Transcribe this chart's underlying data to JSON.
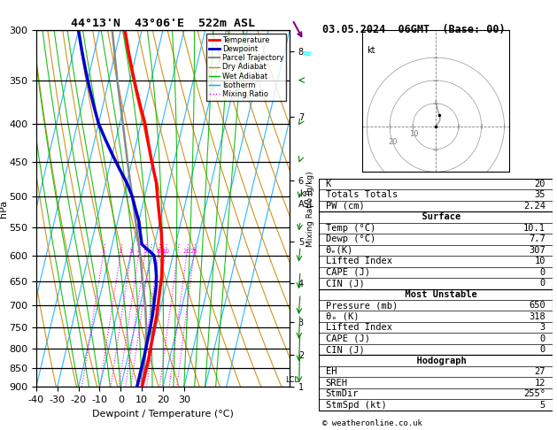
{
  "title_left": "44°13'N  43°06'E  522m ASL",
  "title_right": "03.05.2024  06GMT  (Base: 00)",
  "xlabel": "Dewpoint / Temperature (°C)",
  "ylabel_left": "hPa",
  "copyright": "© weatheronline.co.uk",
  "pmin": 300,
  "pmax": 900,
  "tmin": -40,
  "tmax": 35,
  "pressure_levels": [
    300,
    350,
    400,
    450,
    500,
    550,
    600,
    650,
    700,
    750,
    800,
    850,
    900
  ],
  "km_ticks": [
    1,
    2,
    3,
    4,
    5,
    6,
    7,
    8
  ],
  "km_pressures": [
    906,
    820,
    740,
    657,
    578,
    478,
    392,
    320
  ],
  "temp_data": {
    "pressure": [
      300,
      320,
      340,
      360,
      380,
      400,
      420,
      440,
      460,
      480,
      500,
      520,
      540,
      560,
      580,
      600,
      620,
      640,
      660,
      680,
      700,
      720,
      740,
      760,
      780,
      800,
      820,
      840,
      860,
      880,
      900
    ],
    "temperature": [
      -38,
      -34,
      -30,
      -26,
      -22,
      -18,
      -15,
      -12,
      -9,
      -6,
      -4,
      -2,
      0,
      2,
      3.5,
      5,
      6,
      7,
      7.5,
      8,
      8.5,
      9,
      9.2,
      9.4,
      9.6,
      9.8,
      10,
      10.1,
      10.1,
      10.1,
      10.1
    ]
  },
  "dewp_data": {
    "pressure": [
      300,
      320,
      340,
      360,
      380,
      400,
      420,
      440,
      460,
      480,
      500,
      520,
      540,
      560,
      580,
      600,
      620,
      640,
      660,
      680,
      700,
      720,
      740,
      760,
      780,
      800,
      820,
      840,
      860,
      880,
      900
    ],
    "dewpoint": [
      -60,
      -56,
      -52,
      -48,
      -44,
      -40,
      -35,
      -30,
      -25,
      -20,
      -16,
      -13,
      -10,
      -8,
      -6,
      1,
      3,
      4.5,
      5.5,
      6,
      6.5,
      7,
      7.2,
      7.4,
      7.5,
      7.6,
      7.7,
      7.7,
      7.7,
      7.7,
      7.7
    ]
  },
  "parcel_data": {
    "pressure": [
      900,
      850,
      800,
      750,
      700,
      650,
      600,
      550,
      500,
      450,
      400,
      350,
      300
    ],
    "temperature": [
      10.1,
      9.0,
      7.5,
      5.5,
      2.5,
      -1.5,
      -5.5,
      -10.5,
      -16.0,
      -22.0,
      -28.5,
      -36.0,
      -44.0
    ]
  },
  "lcl_pressure": 880,
  "stats": {
    "K": 20,
    "Totals_Totals": 35,
    "PW_cm": "2.24",
    "Surface_Temp": "10.1",
    "Surface_Dewp": "7.7",
    "Surface_theta_e": 307,
    "Surface_LI": 10,
    "Surface_CAPE": 0,
    "Surface_CIN": 0,
    "MU_Pressure": 650,
    "MU_theta_e": 318,
    "MU_LI": 3,
    "MU_CAPE": 0,
    "MU_CIN": 0,
    "Hodograph_EH": 27,
    "Hodograph_SREH": 12,
    "StmDir": "255°",
    "StmSpd": 5
  },
  "colors": {
    "temperature": "#ff0000",
    "dewpoint": "#0000cc",
    "parcel": "#888888",
    "dry_adiabat": "#cc8800",
    "wet_adiabat": "#00bb00",
    "isotherm": "#00aaff",
    "mixing_ratio": "#ff00ff",
    "background": "#ffffff",
    "grid": "#000000"
  }
}
